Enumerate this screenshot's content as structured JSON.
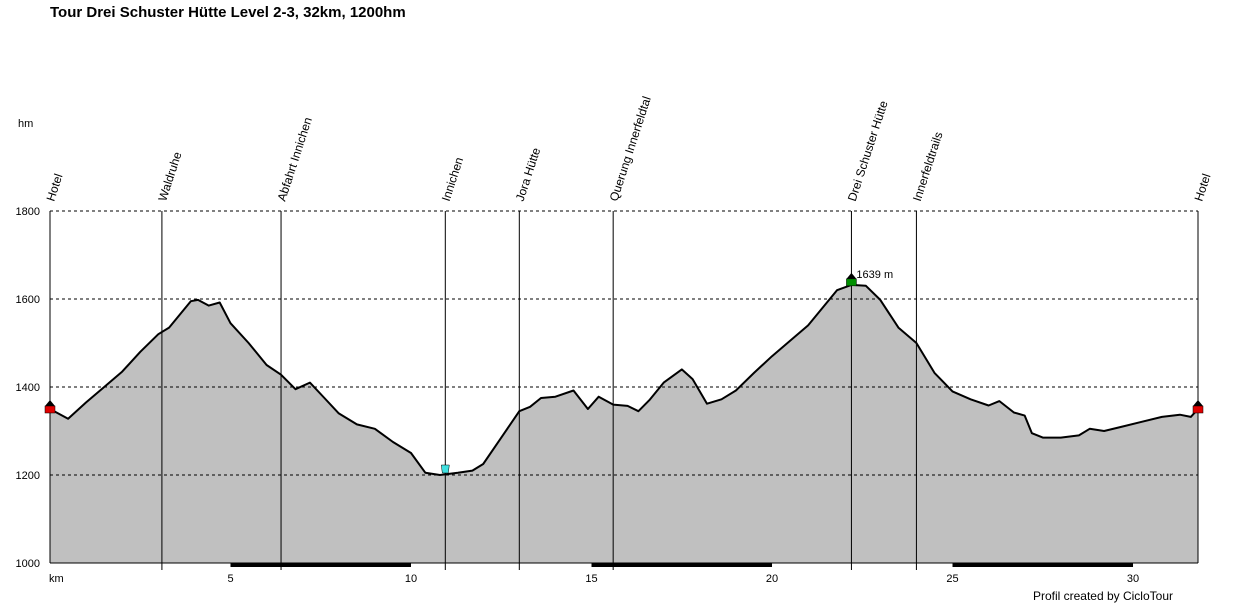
{
  "title": "Tour Drei Schuster Hütte Level 2-3, 32km, 1200hm",
  "credit": "Profil created by CicloTour",
  "chart_data": {
    "type": "area",
    "title": "Tour Drei Schuster Hütte Level 2-3, 32km, 1200hm",
    "ylabel": "hm",
    "xlabel": "km",
    "ylim": [
      1000,
      1800
    ],
    "xlim": [
      0,
      31.8
    ],
    "yticks": [
      1000,
      1200,
      1400,
      1600,
      1800
    ],
    "xticks": [
      5,
      10,
      15,
      20,
      25,
      30
    ],
    "grid": true,
    "colors": {
      "fill": "#c0c0c0",
      "line": "#000000",
      "grid": "#000000",
      "max_label": "#b00000"
    },
    "profile": [
      [
        0,
        1350
      ],
      [
        0.5,
        1328
      ],
      [
        1.0,
        1365
      ],
      [
        1.5,
        1400
      ],
      [
        2.0,
        1435
      ],
      [
        2.5,
        1480
      ],
      [
        3.0,
        1520
      ],
      [
        3.3,
        1535
      ],
      [
        3.6,
        1565
      ],
      [
        3.9,
        1595
      ],
      [
        4.1,
        1598
      ],
      [
        4.4,
        1585
      ],
      [
        4.7,
        1592
      ],
      [
        5.0,
        1545
      ],
      [
        5.5,
        1500
      ],
      [
        6.0,
        1450
      ],
      [
        6.4,
        1428
      ],
      [
        6.8,
        1395
      ],
      [
        7.2,
        1410
      ],
      [
        7.6,
        1375
      ],
      [
        8.0,
        1340
      ],
      [
        8.5,
        1315
      ],
      [
        9.0,
        1305
      ],
      [
        9.5,
        1275
      ],
      [
        10.0,
        1250
      ],
      [
        10.4,
        1205
      ],
      [
        10.8,
        1200
      ],
      [
        11.3,
        1205
      ],
      [
        11.7,
        1210
      ],
      [
        12.0,
        1225
      ],
      [
        12.5,
        1285
      ],
      [
        13.0,
        1345
      ],
      [
        13.3,
        1355
      ],
      [
        13.6,
        1375
      ],
      [
        14.0,
        1378
      ],
      [
        14.5,
        1392
      ],
      [
        14.9,
        1350
      ],
      [
        15.2,
        1378
      ],
      [
        15.6,
        1360
      ],
      [
        16.0,
        1357
      ],
      [
        16.3,
        1345
      ],
      [
        16.6,
        1370
      ],
      [
        17.0,
        1410
      ],
      [
        17.5,
        1440
      ],
      [
        17.8,
        1418
      ],
      [
        18.2,
        1362
      ],
      [
        18.6,
        1372
      ],
      [
        19.0,
        1392
      ],
      [
        19.5,
        1432
      ],
      [
        20.0,
        1470
      ],
      [
        20.5,
        1505
      ],
      [
        21.0,
        1540
      ],
      [
        21.5,
        1590
      ],
      [
        21.8,
        1620
      ],
      [
        22.2,
        1632
      ],
      [
        22.6,
        1630
      ],
      [
        23.0,
        1598
      ],
      [
        23.5,
        1535
      ],
      [
        24.0,
        1500
      ],
      [
        24.5,
        1432
      ],
      [
        25.0,
        1390
      ],
      [
        25.5,
        1372
      ],
      [
        26.0,
        1358
      ],
      [
        26.3,
        1368
      ],
      [
        26.7,
        1342
      ],
      [
        27.0,
        1335
      ],
      [
        27.2,
        1295
      ],
      [
        27.5,
        1285
      ],
      [
        28.0,
        1285
      ],
      [
        28.5,
        1290
      ],
      [
        28.8,
        1305
      ],
      [
        29.2,
        1300
      ],
      [
        29.7,
        1310
      ],
      [
        30.2,
        1320
      ],
      [
        30.8,
        1332
      ],
      [
        31.3,
        1337
      ],
      [
        31.6,
        1332
      ],
      [
        31.8,
        1350
      ]
    ],
    "waypoints": [
      {
        "name": "Hotel",
        "km": 0.0
      },
      {
        "name": "Waldruhe",
        "km": 3.1
      },
      {
        "name": "Abfahrt Innichen",
        "km": 6.4
      },
      {
        "name": "Innichen",
        "km": 10.95
      },
      {
        "name": "Jora Hütte",
        "km": 13.0
      },
      {
        "name": "Querung Innerfeldtal",
        "km": 15.6
      },
      {
        "name": "Drei Schuster Hütte",
        "km": 22.2
      },
      {
        "name": "Innerfeldtrails",
        "km": 24.0
      },
      {
        "name": "Hotel",
        "km": 31.8
      }
    ],
    "max_point": {
      "km": 22.2,
      "elevation": 1639,
      "label": "1639 m"
    },
    "min_point": {
      "km": 10.95,
      "elevation": 1200
    }
  }
}
